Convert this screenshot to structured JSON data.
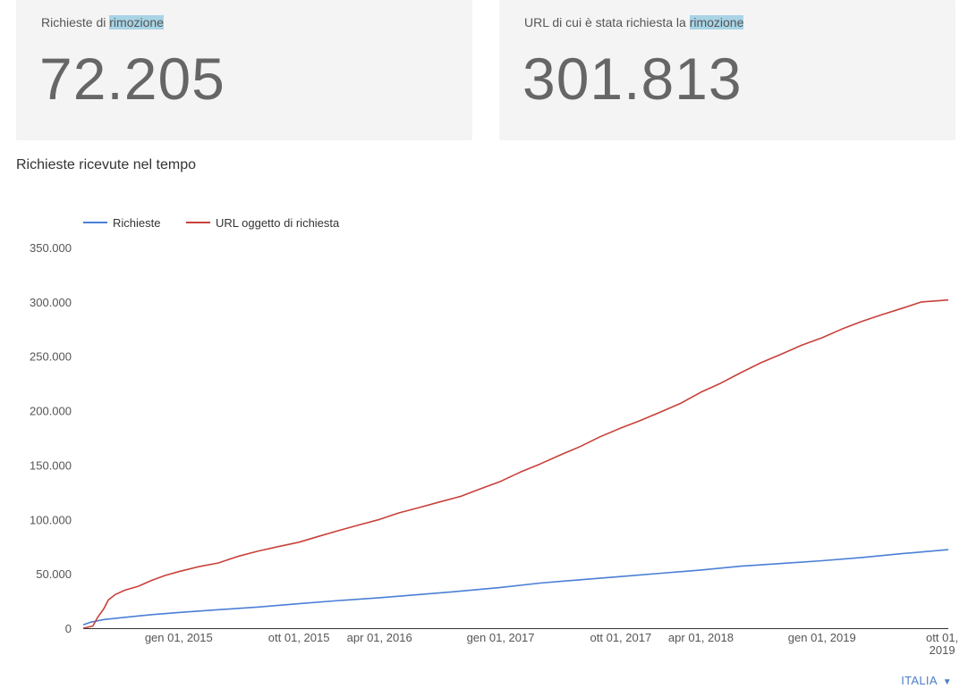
{
  "cards": [
    {
      "label_prefix": "Richieste di ",
      "label_highlight": "rimozione",
      "value": "72.205"
    },
    {
      "label_prefix": "URL di cui è stata richiesta la ",
      "label_highlight": "rimozione",
      "value": "301.813"
    }
  ],
  "section_title": "Richieste ricevute nel tempo",
  "country_selector": {
    "label": "ITALIA",
    "arrow": "▼"
  },
  "colors": {
    "richieste": "#4a7fd6",
    "url": "#c8413a",
    "highlight": "#a8d4e6",
    "card_bg": "#f4f4f4"
  },
  "chart_data": {
    "type": "line",
    "title": "",
    "legend_position": "top-left",
    "ylim": [
      0,
      350000
    ],
    "yticks": [
      0,
      50000,
      100000,
      150000,
      200000,
      250000,
      300000,
      350000
    ],
    "ytick_labels": [
      "0",
      "50.000",
      "100.000",
      "150.000",
      "200.000",
      "250.000",
      "300.000",
      "350.000"
    ],
    "xlim": [
      "2014-05-29",
      "2019-10-15"
    ],
    "xticks": [
      {
        "date": "2015-01-01",
        "label": "gen 01, 2015"
      },
      {
        "date": "2015-10-01",
        "label": "ott 01, 2015"
      },
      {
        "date": "2016-04-01",
        "label": "apr 01, 2016"
      },
      {
        "date": "2017-01-01",
        "label": "gen 01, 2017"
      },
      {
        "date": "2017-10-01",
        "label": "ott 01, 2017"
      },
      {
        "date": "2018-04-01",
        "label": "apr 01, 2018"
      },
      {
        "date": "2019-01-01",
        "label": "gen 01, 2019"
      },
      {
        "date": "2019-10-01",
        "label": "ott 01,",
        "label2": "2019"
      }
    ],
    "grid": false,
    "series": [
      {
        "name": "Richieste",
        "color": "#4a7fd6",
        "points": [
          [
            "2014-05-29",
            3000
          ],
          [
            "2014-06-15",
            5500
          ],
          [
            "2014-07-15",
            8000
          ],
          [
            "2014-09-01",
            10000
          ],
          [
            "2014-11-01",
            12500
          ],
          [
            "2015-01-01",
            14500
          ],
          [
            "2015-04-01",
            17000
          ],
          [
            "2015-07-01",
            19500
          ],
          [
            "2015-10-01",
            22500
          ],
          [
            "2016-01-01",
            25500
          ],
          [
            "2016-04-01",
            28000
          ],
          [
            "2016-07-01",
            31000
          ],
          [
            "2016-10-01",
            34000
          ],
          [
            "2017-01-01",
            37500
          ],
          [
            "2017-04-01",
            41500
          ],
          [
            "2017-07-01",
            44500
          ],
          [
            "2017-10-01",
            47500
          ],
          [
            "2018-01-01",
            50500
          ],
          [
            "2018-04-01",
            53500
          ],
          [
            "2018-07-01",
            57000
          ],
          [
            "2018-10-01",
            59500
          ],
          [
            "2019-01-01",
            62000
          ],
          [
            "2019-04-01",
            65000
          ],
          [
            "2019-07-01",
            68500
          ],
          [
            "2019-10-15",
            72205
          ]
        ]
      },
      {
        "name": "URL oggetto di richiesta",
        "color": "#c8413a",
        "points": [
          [
            "2014-05-29",
            0
          ],
          [
            "2014-06-20",
            2000
          ],
          [
            "2014-07-01",
            10000
          ],
          [
            "2014-07-15",
            18000
          ],
          [
            "2014-07-25",
            26000
          ],
          [
            "2014-08-10",
            31000
          ],
          [
            "2014-09-01",
            35000
          ],
          [
            "2014-10-01",
            38500
          ],
          [
            "2014-11-01",
            44000
          ],
          [
            "2014-12-01",
            48500
          ],
          [
            "2015-01-01",
            52000
          ],
          [
            "2015-02-15",
            56500
          ],
          [
            "2015-04-01",
            60000
          ],
          [
            "2015-05-15",
            66000
          ],
          [
            "2015-07-01",
            71000
          ],
          [
            "2015-08-15",
            75000
          ],
          [
            "2015-10-01",
            79000
          ],
          [
            "2015-11-15",
            84500
          ],
          [
            "2016-01-01",
            90000
          ],
          [
            "2016-02-15",
            95000
          ],
          [
            "2016-04-01",
            100000
          ],
          [
            "2016-05-15",
            106000
          ],
          [
            "2016-07-01",
            111000
          ],
          [
            "2016-08-15",
            116000
          ],
          [
            "2016-10-01",
            121000
          ],
          [
            "2016-11-15",
            128000
          ],
          [
            "2017-01-01",
            135000
          ],
          [
            "2017-02-15",
            143500
          ],
          [
            "2017-04-01",
            151000
          ],
          [
            "2017-05-15",
            159000
          ],
          [
            "2017-07-01",
            167000
          ],
          [
            "2017-08-15",
            176000
          ],
          [
            "2017-10-01",
            184000
          ],
          [
            "2017-11-15",
            191000
          ],
          [
            "2018-01-01",
            199000
          ],
          [
            "2018-02-15",
            207000
          ],
          [
            "2018-04-01",
            217000
          ],
          [
            "2018-05-15",
            225000
          ],
          [
            "2018-07-01",
            235000
          ],
          [
            "2018-08-15",
            244000
          ],
          [
            "2018-10-01",
            252000
          ],
          [
            "2018-11-15",
            260000
          ],
          [
            "2019-01-01",
            267000
          ],
          [
            "2019-02-15",
            275000
          ],
          [
            "2019-04-01",
            282000
          ],
          [
            "2019-05-15",
            288000
          ],
          [
            "2019-07-01",
            294000
          ],
          [
            "2019-08-15",
            300000
          ],
          [
            "2019-10-15",
            301813
          ]
        ]
      }
    ]
  }
}
